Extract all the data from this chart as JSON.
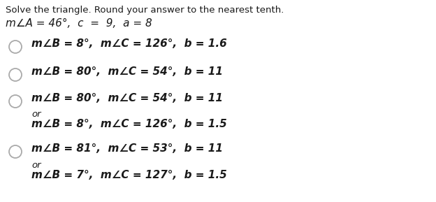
{
  "title_line1": "Solve the triangle. Round your answer to the nearest tenth.",
  "title_line2": "m∠A = 46°,  c  =  9,  a = 8",
  "options": [
    {
      "main": "m∠B = 8°,  m∠C = 126°,  b = 1.6",
      "or": null,
      "secondary": null
    },
    {
      "main": "m∠B = 80°,  m∠C = 54°,  b = 11",
      "or": null,
      "secondary": null
    },
    {
      "main": "m∠B = 80°,  m∠C = 54°,  b = 11",
      "or": "or",
      "secondary": "m∠B = 8°,  m∠C = 126°,  b = 1.5"
    },
    {
      "main": "m∠B = 81°,  m∠C = 53°,  b = 11",
      "or": "or",
      "secondary": "m∠B = 7°,  m∠C = 127°,  b = 1.5"
    }
  ],
  "bg_color": "#ffffff",
  "text_color": "#1a1a1a",
  "circle_color": "#aaaaaa",
  "title_fontsize": 9.5,
  "title2_fontsize": 11.0,
  "option_fontsize": 11.0,
  "or_fontsize": 9.5,
  "font_family": "DejaVu Sans"
}
